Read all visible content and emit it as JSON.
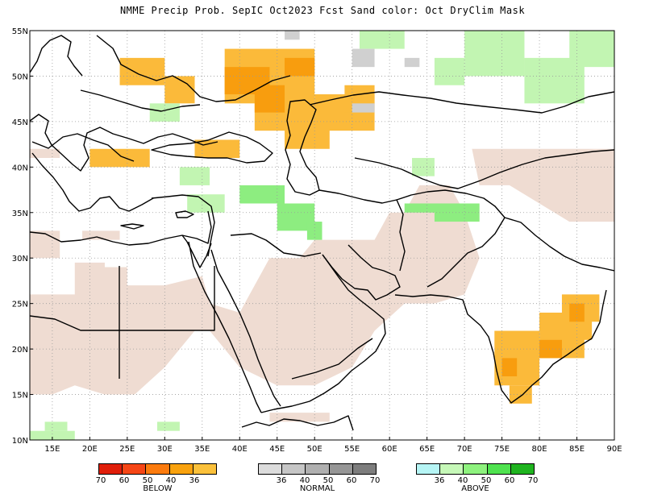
{
  "title": "NMME Precip Prob. SepIC   Oct2023 Fcst  Sand color: Oct DryClim Mask",
  "map": {
    "lon_range": [
      12,
      90
    ],
    "lat_range": [
      10,
      55
    ],
    "lon_ticks": [
      "15E",
      "20E",
      "25E",
      "30E",
      "35E",
      "40E",
      "45E",
      "50E",
      "55E",
      "60E",
      "65E",
      "70E",
      "75E",
      "80E",
      "85E",
      "90E"
    ],
    "lat_ticks": [
      "55N",
      "50N",
      "45N",
      "40N",
      "35N",
      "30N",
      "25N",
      "20N",
      "15N",
      "10N"
    ],
    "colors": {
      "dry_mask": "#efdcd2",
      "below_36": "#fbba3a",
      "below_40": "#f89d0e",
      "normal_36": "#d0d0d0",
      "above_36": "#c2f5b2",
      "above_40": "#8ded80",
      "coast": "#000000",
      "grid": "#9a9a9a"
    }
  },
  "legends": [
    {
      "caption": "BELOW",
      "colors": [
        "#e01e0a",
        "#f64616",
        "#fc7b0e",
        "#f9a20e",
        "#fbc13b"
      ],
      "ticks": [
        "70",
        "60",
        "50",
        "40",
        "36"
      ]
    },
    {
      "caption": "NORMAL",
      "colors": [
        "#dcdcdc",
        "#c6c6c6",
        "#b0b0b0",
        "#969696",
        "#7d7d7d"
      ],
      "ticks": [
        "36",
        "40",
        "50",
        "60",
        "70"
      ]
    },
    {
      "caption": "ABOVE",
      "colors": [
        "#b6f5f5",
        "#c6f8b8",
        "#8ef27e",
        "#4fe24f",
        "#1fb41f"
      ],
      "ticks": [
        "36",
        "40",
        "50",
        "60",
        "70"
      ]
    }
  ]
}
